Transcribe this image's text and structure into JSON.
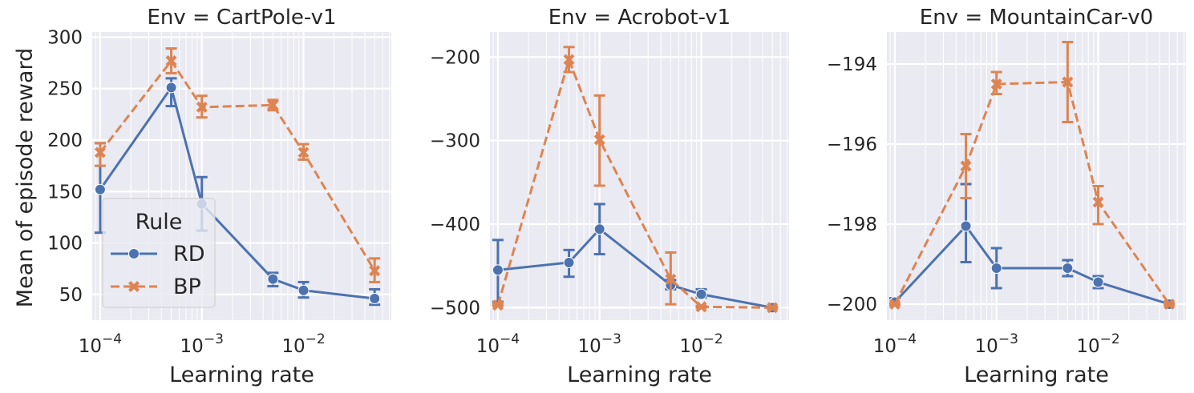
{
  "figure": {
    "ylabel": "Mean of episode reward",
    "xlabel": "Learning rate",
    "legend_title": "Rule",
    "colors": {
      "RD": "#4c72b0",
      "BP": "#dd8452",
      "axes_bg": "#eaeaf2",
      "grid": "#ffffff"
    }
  },
  "chart_data": [
    {
      "type": "line",
      "title": "Env = CartPole-v1",
      "xlabel": "Learning rate",
      "ylabel": "Mean of episode reward",
      "xscale": "log",
      "xlim": [
        8.35e-05,
        0.073
      ],
      "ylim": [
        25,
        305
      ],
      "x_ticks": [
        0.0001,
        0.001,
        0.01
      ],
      "x_tick_labels": [
        "10^-4",
        "10^-3",
        "10^-2"
      ],
      "y_ticks": [
        50,
        100,
        150,
        200,
        250,
        300
      ],
      "x": [
        0.0001,
        0.0005,
        0.001,
        0.005,
        0.01,
        0.05
      ],
      "series": [
        {
          "name": "RD",
          "marker": "circle",
          "style": "solid",
          "values": [
            152,
            251,
            138,
            65,
            54,
            46
          ],
          "err_low": [
            110,
            233,
            112,
            58,
            47,
            40
          ],
          "err_high": [
            197,
            260,
            164,
            71,
            62,
            55
          ]
        },
        {
          "name": "BP",
          "marker": "x",
          "style": "dashed",
          "values": [
            188,
            277,
            232,
            234,
            188,
            73
          ],
          "err_low": [
            175,
            265,
            222,
            229,
            181,
            62
          ],
          "err_high": [
            197,
            289,
            243,
            239,
            196,
            85
          ]
        }
      ],
      "legend": "lower-left",
      "grid": true
    },
    {
      "type": "line",
      "title": "Env = Acrobot-v1",
      "xlabel": "Learning rate",
      "xscale": "log",
      "xlim": [
        8.35e-05,
        0.073
      ],
      "ylim": [
        -515,
        -170
      ],
      "x_ticks": [
        0.0001,
        0.001,
        0.01
      ],
      "x_tick_labels": [
        "10^-4",
        "10^-3",
        "10^-2"
      ],
      "y_ticks": [
        -500,
        -400,
        -300,
        -200
      ],
      "y_tick_labels": [
        "−500",
        "−400",
        "−300",
        "−200"
      ],
      "x": [
        0.0001,
        0.0005,
        0.001,
        0.005,
        0.01,
        0.05
      ],
      "series": [
        {
          "name": "RD",
          "marker": "circle",
          "style": "solid",
          "values": [
            -455,
            -446,
            -406,
            -473,
            -484,
            -500
          ],
          "err_low": [
            -493,
            -463,
            -436,
            -478,
            -488,
            -501
          ],
          "err_high": [
            -419,
            -431,
            -376,
            -467,
            -478,
            -499
          ]
        },
        {
          "name": "BP",
          "marker": "x",
          "style": "dashed",
          "values": [
            -497,
            -203,
            -299,
            -466,
            -499,
            -500
          ],
          "err_low": [
            -498,
            -218,
            -354,
            -496,
            -500,
            -501
          ],
          "err_high": [
            -496,
            -188,
            -246,
            -434,
            -498,
            -499
          ]
        }
      ],
      "grid": true
    },
    {
      "type": "line",
      "title": "Env = MountainCar-v0",
      "xlabel": "Learning rate",
      "xscale": "log",
      "xlim": [
        8.35e-05,
        0.073
      ],
      "ylim": [
        -200.4,
        -193.2
      ],
      "x_ticks": [
        0.0001,
        0.001,
        0.01
      ],
      "x_tick_labels": [
        "10^-4",
        "10^-3",
        "10^-2"
      ],
      "y_ticks": [
        -200,
        -198,
        -196,
        -194
      ],
      "y_tick_labels": [
        "−200",
        "−198",
        "−196",
        "−194"
      ],
      "x": [
        0.0001,
        0.0005,
        0.001,
        0.005,
        0.01,
        0.05
      ],
      "series": [
        {
          "name": "RD",
          "marker": "circle",
          "style": "solid",
          "values": [
            -199.95,
            -198.05,
            -199.1,
            -199.1,
            -199.45,
            -200.0
          ],
          "err_low": [
            -200.0,
            -198.95,
            -199.6,
            -199.3,
            -199.6,
            -200.02
          ],
          "err_high": [
            -199.85,
            -197.0,
            -198.6,
            -198.9,
            -199.3,
            -199.98
          ]
        },
        {
          "name": "BP",
          "marker": "x",
          "style": "dashed",
          "values": [
            -200.0,
            -196.55,
            -194.5,
            -194.45,
            -197.45,
            -200.0
          ],
          "err_low": [
            -200.02,
            -197.35,
            -194.75,
            -195.45,
            -198.0,
            -200.02
          ],
          "err_high": [
            -199.98,
            -195.75,
            -194.2,
            -193.45,
            -197.05,
            -199.98
          ]
        }
      ],
      "grid": true
    }
  ]
}
